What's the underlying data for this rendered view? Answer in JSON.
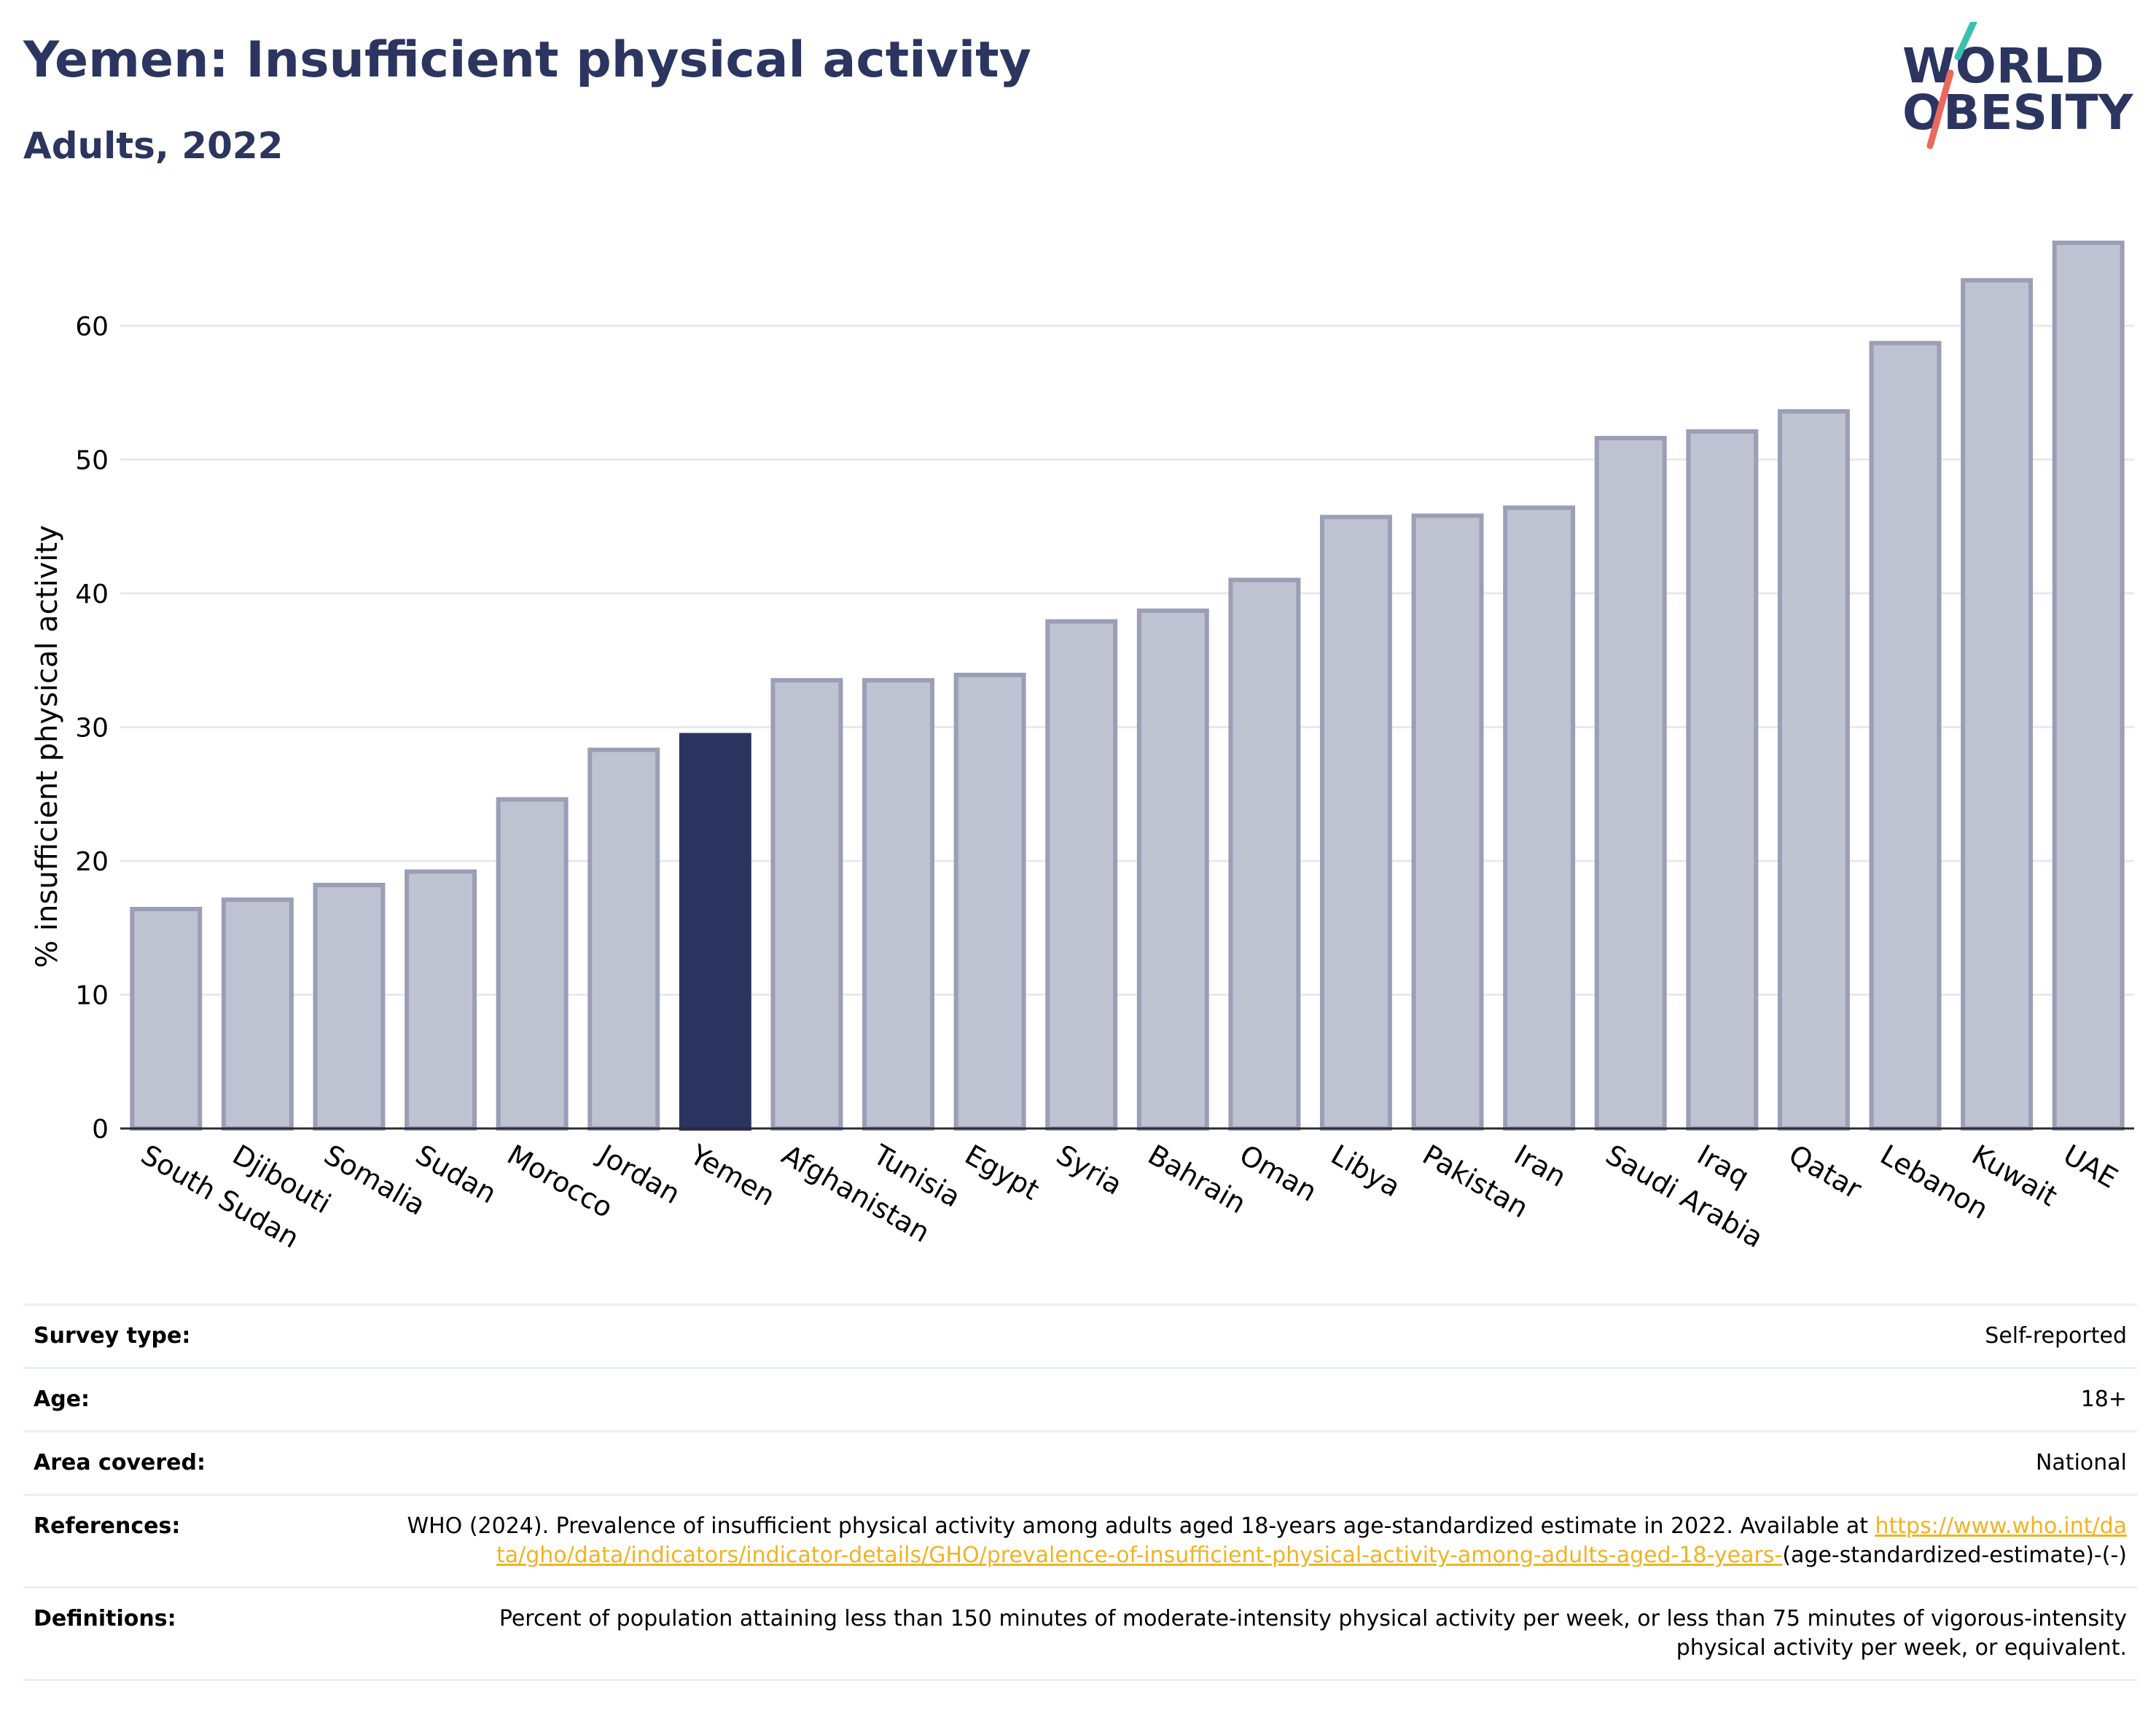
{
  "header": {
    "title": "Yemen: Insufficient physical activity",
    "subtitle": "Adults, 2022",
    "logo_line1": "WORLD",
    "logo_line2": "OBESITY"
  },
  "colors": {
    "brand": "#2b3560",
    "bar_default": "#bfc2d0",
    "bar_default_border": "#9a9eb6",
    "bar_highlight": "#2b3560",
    "link": "#f0b322",
    "logo_slash_top": "#3bbfb0",
    "logo_slash_bottom": "#e9695c"
  },
  "chart_data": {
    "type": "bar",
    "title": "Yemen: Insufficient physical activity",
    "subtitle": "Adults, 2022",
    "ylabel": "% insufficient physical activity",
    "xlabel": "",
    "ylim": [
      0,
      68
    ],
    "yticks": [
      0,
      10,
      20,
      30,
      40,
      50,
      60
    ],
    "grid": true,
    "legend": "none",
    "highlight": "Yemen",
    "categories": [
      "South Sudan",
      "Djibouti",
      "Somalia",
      "Sudan",
      "Morocco",
      "Jordan",
      "Yemen",
      "Afghanistan",
      "Tunisia",
      "Egypt",
      "Syria",
      "Bahrain",
      "Oman",
      "Libya",
      "Pakistan",
      "Iran",
      "Saudi Arabia",
      "Iraq",
      "Qatar",
      "Lebanon",
      "Kuwait",
      "UAE"
    ],
    "values": [
      16.4,
      17.1,
      18.2,
      19.2,
      24.6,
      28.3,
      29.4,
      33.5,
      33.5,
      33.9,
      37.9,
      38.7,
      41.0,
      45.7,
      45.8,
      46.4,
      51.6,
      52.1,
      53.6,
      58.7,
      63.4,
      66.2
    ]
  },
  "info": {
    "survey_type": {
      "label": "Survey type:",
      "value": "Self-reported"
    },
    "age": {
      "label": "Age:",
      "value": "18+"
    },
    "area": {
      "label": "Area covered:",
      "value": "National"
    },
    "references": {
      "label": "References:",
      "text_before": "WHO (2024). Prevalence of insufficient physical activity among adults aged 18-years age-standardized estimate in 2022. Available at ",
      "link": "https://www.who.int/data/gho/data/indicators/indicator-details/GHO/prevalence-of-insufficient-physical-activity-among-adults-aged-18-years-",
      "text_after": "(age-standardized-estimate)-(-)"
    },
    "definitions": {
      "label": "Definitions:",
      "value": "Percent of population attaining less than 150 minutes of moderate-intensity physical activity per week, or less than 75 minutes of vigorous-intensity physical activity per week, or equivalent."
    }
  }
}
